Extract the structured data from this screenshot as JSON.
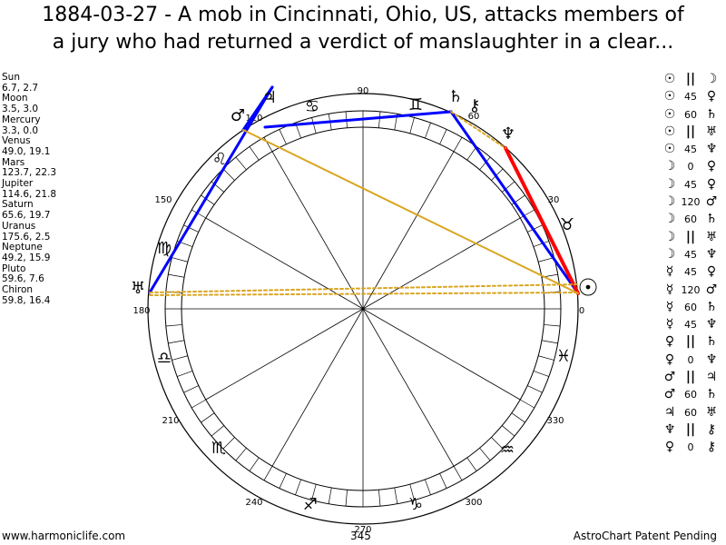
{
  "title": {
    "line1": "1884-03-27 - A mob in Cincinnati, Ohio, US, attacks members of",
    "line2": "a jury who had returned a verdict of manslaughter in a clear..."
  },
  "planets": [
    {
      "name": "Sun",
      "values": "6.7, 2.7"
    },
    {
      "name": "Moon",
      "values": "3.5, 3.0"
    },
    {
      "name": "Mercury",
      "values": "3.3, 0.0"
    },
    {
      "name": "Venus",
      "values": "49.0, 19.1"
    },
    {
      "name": "Mars",
      "values": "123.7, 22.3"
    },
    {
      "name": "Jupiter",
      "values": "114.6, 21.8"
    },
    {
      "name": "Saturn",
      "values": "65.6, 19.7"
    },
    {
      "name": "Uranus",
      "values": "175.6, 2.5"
    },
    {
      "name": "Neptune",
      "values": "49.2, 15.9"
    },
    {
      "name": "Pluto",
      "values": "59.6, 7.6"
    },
    {
      "name": "Chiron",
      "values": "59.8, 16.4"
    }
  ],
  "aspects": [
    {
      "p1": "☉",
      "asp": "||",
      "p2": "☽"
    },
    {
      "p1": "☉",
      "asp": "45",
      "p2": "♀"
    },
    {
      "p1": "☉",
      "asp": "60",
      "p2": "♄"
    },
    {
      "p1": "☉",
      "asp": "||",
      "p2": "♅"
    },
    {
      "p1": "☉",
      "asp": "45",
      "p2": "♆"
    },
    {
      "p1": "☽",
      "asp": "0",
      "p2": "♀"
    },
    {
      "p1": "☽",
      "asp": "45",
      "p2": "♀"
    },
    {
      "p1": "☽",
      "asp": "120",
      "p2": "♂"
    },
    {
      "p1": "☽",
      "asp": "60",
      "p2": "♄"
    },
    {
      "p1": "☽",
      "asp": "||",
      "p2": "♅"
    },
    {
      "p1": "☽",
      "asp": "45",
      "p2": "♆"
    },
    {
      "p1": "☿",
      "asp": "45",
      "p2": "♀"
    },
    {
      "p1": "☿",
      "asp": "120",
      "p2": "♂"
    },
    {
      "p1": "☿",
      "asp": "60",
      "p2": "♄"
    },
    {
      "p1": "☿",
      "asp": "45",
      "p2": "♆"
    },
    {
      "p1": "♀",
      "asp": "||",
      "p2": "♄"
    },
    {
      "p1": "♀",
      "asp": "0",
      "p2": "♆"
    },
    {
      "p1": "♂",
      "asp": "||",
      "p2": "♃"
    },
    {
      "p1": "♂",
      "asp": "60",
      "p2": "♄"
    },
    {
      "p1": "♃",
      "asp": "60",
      "p2": "♅"
    },
    {
      "p1": "♆",
      "asp": "||",
      "p2": "⚷"
    },
    {
      "p1": "♀",
      "asp": "0",
      "p2": "⚷"
    }
  ],
  "wheel": {
    "degree_labels": [
      "0",
      "30",
      "60",
      "90",
      "120",
      "150",
      "180",
      "210",
      "240",
      "270",
      "300",
      "330"
    ],
    "bottom_value": "345",
    "signs": [
      {
        "name": "taurus",
        "glyph": "♉"
      },
      {
        "name": "gemini",
        "glyph": "♊"
      },
      {
        "name": "cancer",
        "glyph": "♋"
      },
      {
        "name": "leo",
        "glyph": "♌"
      },
      {
        "name": "virgo",
        "glyph": "♍"
      },
      {
        "name": "libra",
        "glyph": "♎"
      },
      {
        "name": "scorpio",
        "glyph": "♏"
      },
      {
        "name": "sagittarius",
        "glyph": "♐"
      },
      {
        "name": "capricorn",
        "glyph": "♑"
      },
      {
        "name": "aquarius",
        "glyph": "♒"
      },
      {
        "name": "pisces",
        "glyph": "♓"
      }
    ],
    "planet_glyphs": [
      {
        "name": "sun-moon-mercury",
        "glyph": "☉"
      },
      {
        "name": "venus-neptune",
        "glyph": "♆"
      },
      {
        "name": "saturn",
        "glyph": "♄"
      },
      {
        "name": "chiron-pluto",
        "glyph": "⚷"
      },
      {
        "name": "jupiter",
        "glyph": "♃"
      },
      {
        "name": "mars",
        "glyph": "♂"
      },
      {
        "name": "uranus",
        "glyph": "♅"
      }
    ]
  },
  "colors": {
    "square": "#0000ff",
    "conjunction": "#ff0000",
    "trine": "#daa520",
    "semisquare": "#daa520"
  },
  "footer": {
    "left": "www.harmoniclife.com",
    "right": "AstroChart Patent Pending"
  }
}
